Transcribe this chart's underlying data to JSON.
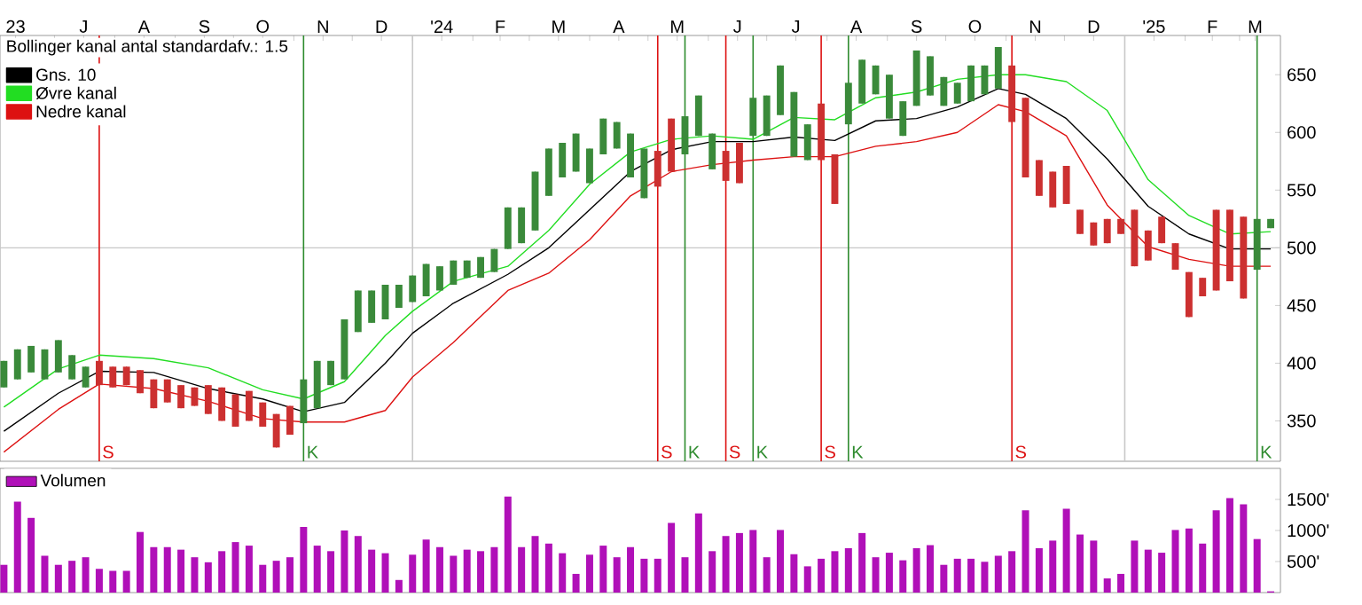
{
  "chart_data": [
    {
      "type": "candlestick",
      "x": [
        "2023-06-05",
        "2023-06-12",
        "2023-06-19",
        "2023-06-26",
        "2023-07-03",
        "2023-07-10",
        "2023-07-17",
        "2023-07-24",
        "2023-07-31",
        "2023-08-07",
        "2023-08-14",
        "2023-08-21",
        "2023-08-28",
        "2023-09-04",
        "2023-09-11",
        "2023-09-18",
        "2023-09-25",
        "2023-10-02",
        "2023-10-09",
        "2023-10-16",
        "2023-10-23",
        "2023-10-30",
        "2023-11-06",
        "2023-11-13",
        "2023-11-20",
        "2023-11-27",
        "2023-12-04",
        "2023-12-11",
        "2023-12-18",
        "2023-12-25",
        "2024-01-01",
        "2024-01-08",
        "2024-01-15",
        "2024-01-22",
        "2024-01-29",
        "2024-02-05",
        "2024-02-12",
        "2024-02-19",
        "2024-02-26",
        "2024-03-04",
        "2024-03-11",
        "2024-03-18",
        "2024-03-25",
        "2024-04-01",
        "2024-04-08",
        "2024-04-15",
        "2024-04-22",
        "2024-04-29",
        "2024-05-06",
        "2024-05-13",
        "2024-05-20",
        "2024-05-27",
        "2024-06-03",
        "2024-06-10",
        "2024-06-17",
        "2024-06-24",
        "2024-07-01",
        "2024-07-08",
        "2024-07-15",
        "2024-07-22",
        "2024-07-29",
        "2024-08-05",
        "2024-08-12",
        "2024-08-19",
        "2024-08-26",
        "2024-09-02",
        "2024-09-09",
        "2024-09-16",
        "2024-09-23",
        "2024-09-30",
        "2024-10-07",
        "2024-10-14",
        "2024-10-21",
        "2024-10-28",
        "2024-11-04",
        "2024-11-11",
        "2024-11-18",
        "2024-11-25",
        "2024-12-02",
        "2024-12-09",
        "2024-12-16",
        "2024-12-23",
        "2024-12-30",
        "2025-01-06",
        "2025-01-13",
        "2025-01-20",
        "2025-01-27",
        "2025-02-03",
        "2025-02-10",
        "2025-02-17",
        "2025-02-24",
        "2025-03-03",
        "2025-03-10",
        "2025-03-17"
      ],
      "ohlc": [
        [
          379,
          402,
          379,
          402
        ],
        [
          386,
          412,
          386,
          412
        ],
        [
          392,
          415,
          392,
          415
        ],
        [
          386,
          412,
          386,
          412
        ],
        [
          392,
          420,
          392,
          420
        ],
        [
          386,
          407,
          386,
          407
        ],
        [
          379,
          397,
          379,
          397
        ],
        [
          402,
          402,
          381,
          381
        ],
        [
          397,
          397,
          379,
          379
        ],
        [
          397,
          397,
          381,
          381
        ],
        [
          394,
          394,
          374,
          374
        ],
        [
          386,
          386,
          361,
          361
        ],
        [
          386,
          386,
          366,
          366
        ],
        [
          381,
          381,
          361,
          361
        ],
        [
          379,
          379,
          363,
          363
        ],
        [
          381,
          381,
          356,
          356
        ],
        [
          379,
          379,
          350,
          350
        ],
        [
          373,
          373,
          345,
          345
        ],
        [
          376,
          376,
          350,
          350
        ],
        [
          366,
          366,
          345,
          345
        ],
        [
          356,
          356,
          327,
          327
        ],
        [
          363,
          363,
          338,
          338
        ],
        [
          348,
          386,
          348,
          386
        ],
        [
          361,
          402,
          361,
          402
        ],
        [
          381,
          402,
          381,
          402
        ],
        [
          386,
          438,
          386,
          438
        ],
        [
          427,
          463,
          427,
          463
        ],
        [
          435,
          463,
          435,
          463
        ],
        [
          438,
          468,
          438,
          468
        ],
        [
          448,
          468,
          448,
          468
        ],
        [
          453,
          476,
          453,
          476
        ],
        [
          458,
          486,
          458,
          486
        ],
        [
          463,
          484,
          463,
          484
        ],
        [
          468,
          489,
          468,
          489
        ],
        [
          474,
          489,
          474,
          489
        ],
        [
          474,
          492,
          474,
          492
        ],
        [
          479,
          499,
          479,
          499
        ],
        [
          499,
          535,
          499,
          535
        ],
        [
          504,
          535,
          504,
          535
        ],
        [
          515,
          566,
          515,
          566
        ],
        [
          545,
          586,
          545,
          586
        ],
        [
          561,
          591,
          561,
          591
        ],
        [
          566,
          599,
          566,
          599
        ],
        [
          556,
          586,
          556,
          586
        ],
        [
          581,
          612,
          581,
          612
        ],
        [
          586,
          609,
          586,
          609
        ],
        [
          561,
          599,
          561,
          599
        ],
        [
          543,
          586,
          543,
          586
        ],
        [
          584,
          584,
          553,
          553
        ],
        [
          612,
          612,
          566,
          566
        ],
        [
          581,
          614,
          581,
          614
        ],
        [
          597,
          632,
          597,
          632
        ],
        [
          568,
          599,
          568,
          599
        ],
        [
          584,
          584,
          558,
          558
        ],
        [
          591,
          591,
          556,
          556
        ],
        [
          597,
          630,
          597,
          630
        ],
        [
          597,
          632,
          597,
          632
        ],
        [
          615,
          658,
          615,
          658
        ],
        [
          579,
          635,
          579,
          635
        ],
        [
          576,
          607,
          576,
          607
        ],
        [
          625,
          625,
          576,
          576
        ],
        [
          581,
          581,
          538,
          538
        ],
        [
          607,
          643,
          607,
          643
        ],
        [
          625,
          663,
          625,
          663
        ],
        [
          633,
          658,
          633,
          658
        ],
        [
          612,
          650,
          612,
          650
        ],
        [
          597,
          627,
          597,
          627
        ],
        [
          623,
          671,
          623,
          671
        ],
        [
          632,
          666,
          632,
          666
        ],
        [
          623,
          648,
          623,
          648
        ],
        [
          625,
          643,
          625,
          643
        ],
        [
          627,
          658,
          627,
          658
        ],
        [
          633,
          658,
          633,
          658
        ],
        [
          638,
          674,
          638,
          674
        ],
        [
          658,
          658,
          609,
          609
        ],
        [
          630,
          630,
          561,
          561
        ],
        [
          576,
          576,
          545,
          545
        ],
        [
          566,
          566,
          535,
          535
        ],
        [
          571,
          571,
          538,
          538
        ],
        [
          533,
          533,
          512,
          512
        ],
        [
          522,
          522,
          502,
          502
        ],
        [
          525,
          525,
          504,
          504
        ],
        [
          525,
          525,
          512,
          512
        ],
        [
          533,
          533,
          484,
          484
        ],
        [
          515,
          515,
          489,
          489
        ],
        [
          527,
          527,
          504,
          504
        ],
        [
          504,
          504,
          481,
          481
        ],
        [
          479,
          479,
          440,
          440
        ],
        [
          474,
          474,
          458,
          458
        ],
        [
          533,
          533,
          463,
          463
        ],
        [
          533,
          533,
          471,
          471
        ],
        [
          527,
          527,
          456,
          456
        ],
        [
          481,
          525,
          481,
          525
        ],
        [
          517,
          525,
          517,
          525
        ]
      ],
      "colors": [
        "#3a8a3a",
        "#3a8a3a",
        "#3a8a3a",
        "#3a8a3a",
        "#3a8a3a",
        "#3a8a3a",
        "#3a8a3a",
        "#cc3030",
        "#cc3030",
        "#cc3030",
        "#cc3030",
        "#cc3030",
        "#cc3030",
        "#cc3030",
        "#cc3030",
        "#cc3030",
        "#cc3030",
        "#cc3030",
        "#cc3030",
        "#cc3030",
        "#cc3030",
        "#cc3030",
        "#3a8a3a",
        "#3a8a3a",
        "#3a8a3a",
        "#3a8a3a",
        "#3a8a3a",
        "#3a8a3a",
        "#3a8a3a",
        "#3a8a3a",
        "#3a8a3a",
        "#3a8a3a",
        "#3a8a3a",
        "#3a8a3a",
        "#3a8a3a",
        "#3a8a3a",
        "#3a8a3a",
        "#3a8a3a",
        "#3a8a3a",
        "#3a8a3a",
        "#3a8a3a",
        "#3a8a3a",
        "#3a8a3a",
        "#3a8a3a",
        "#3a8a3a",
        "#3a8a3a",
        "#3a8a3a",
        "#3a8a3a",
        "#cc3030",
        "#cc3030",
        "#3a8a3a",
        "#3a8a3a",
        "#3a8a3a",
        "#cc3030",
        "#cc3030",
        "#3a8a3a",
        "#3a8a3a",
        "#3a8a3a",
        "#3a8a3a",
        "#3a8a3a",
        "#cc3030",
        "#cc3030",
        "#3a8a3a",
        "#3a8a3a",
        "#3a8a3a",
        "#3a8a3a",
        "#3a8a3a",
        "#3a8a3a",
        "#3a8a3a",
        "#3a8a3a",
        "#3a8a3a",
        "#3a8a3a",
        "#3a8a3a",
        "#3a8a3a",
        "#cc3030",
        "#cc3030",
        "#cc3030",
        "#cc3030",
        "#cc3030",
        "#cc3030",
        "#cc3030",
        "#cc3030",
        "#cc3030",
        "#cc3030",
        "#cc3030",
        "#cc3030",
        "#cc3030",
        "#cc3030",
        "#cc3030",
        "#cc3030",
        "#cc3030",
        "#cc3030",
        "#3a8a3a",
        "#3a8a3a"
      ],
      "series": [
        {
          "type": "line",
          "name": "Gns. 10",
          "color": "#000000",
          "x": [
            "2023-06-05",
            "2023-07-03",
            "2023-07-24",
            "2023-08-21",
            "2023-09-18",
            "2023-10-16",
            "2023-11-06",
            "2023-11-27",
            "2023-12-18",
            "2024-01-01",
            "2024-01-22",
            "2024-02-19",
            "2024-03-11",
            "2024-04-01",
            "2024-04-22",
            "2024-05-13",
            "2024-06-03",
            "2024-06-24",
            "2024-07-15",
            "2024-08-05",
            "2024-08-26",
            "2024-09-16",
            "2024-10-07",
            "2024-10-28",
            "2024-11-11",
            "2024-12-02",
            "2024-12-23",
            "2025-01-13",
            "2025-02-03",
            "2025-02-24",
            "2025-03-17"
          ],
          "values": [
            341,
            374,
            393,
            392,
            378,
            369,
            358,
            366,
            400,
            426,
            452,
            477,
            500,
            533,
            566,
            585,
            592,
            592,
            596,
            593,
            610,
            612,
            622,
            638,
            633,
            612,
            577,
            536,
            512,
            499,
            499
          ]
        },
        {
          "type": "line",
          "name": "Øvre kanal",
          "color": "#22dd22",
          "x": [
            "2023-06-05",
            "2023-07-03",
            "2023-07-24",
            "2023-08-21",
            "2023-09-18",
            "2023-10-16",
            "2023-11-06",
            "2023-11-27",
            "2023-12-18",
            "2024-01-01",
            "2024-01-22",
            "2024-02-19",
            "2024-03-11",
            "2024-04-01",
            "2024-04-22",
            "2024-05-13",
            "2024-06-03",
            "2024-06-24",
            "2024-07-15",
            "2024-08-05",
            "2024-08-26",
            "2024-09-16",
            "2024-10-07",
            "2024-10-28",
            "2024-11-11",
            "2024-12-02",
            "2024-12-23",
            "2025-01-13",
            "2025-02-03",
            "2025-02-24",
            "2025-03-17"
          ],
          "values": [
            362,
            395,
            407,
            404,
            396,
            377,
            369,
            384,
            424,
            445,
            471,
            484,
            515,
            555,
            583,
            594,
            597,
            594,
            613,
            611,
            630,
            635,
            646,
            650,
            650,
            644,
            619,
            559,
            528,
            512,
            514
          ]
        },
        {
          "type": "line",
          "name": "Nedre kanal",
          "color": "#dd1111",
          "x": [
            "2023-06-05",
            "2023-07-03",
            "2023-07-24",
            "2023-08-21",
            "2023-09-18",
            "2023-10-16",
            "2023-11-06",
            "2023-11-27",
            "2023-12-18",
            "2024-01-01",
            "2024-01-22",
            "2024-02-19",
            "2024-03-11",
            "2024-04-01",
            "2024-04-22",
            "2024-05-13",
            "2024-06-03",
            "2024-06-24",
            "2024-07-15",
            "2024-08-05",
            "2024-08-26",
            "2024-09-16",
            "2024-10-07",
            "2024-10-28",
            "2024-11-11",
            "2024-12-02",
            "2024-12-23",
            "2025-01-13",
            "2025-02-03",
            "2025-02-24",
            "2025-03-17"
          ],
          "values": [
            323,
            360,
            382,
            378,
            367,
            352,
            349,
            349,
            359,
            388,
            418,
            463,
            478,
            507,
            545,
            566,
            572,
            576,
            579,
            579,
            588,
            592,
            600,
            624,
            618,
            597,
            537,
            501,
            490,
            484,
            484
          ]
        }
      ],
      "annotations": [
        "Bollinger kanal antal standardafv.: 1.5"
      ],
      "legend": "top left",
      "xlim": [
        "2023-06-03",
        "2025-03-22"
      ],
      "ylim": [
        315,
        684
      ],
      "yticks": [
        350,
        400,
        450,
        500,
        550,
        600,
        650
      ],
      "xticks": [
        {
          "value": "2023-06-11",
          "label": "23"
        },
        {
          "value": "2023-07-01",
          "label": null
        },
        {
          "value": "2023-07-16",
          "label": "J"
        },
        {
          "value": "2023-08-01",
          "label": null
        },
        {
          "value": "2023-08-16",
          "label": "A"
        },
        {
          "value": "2023-09-01",
          "label": null
        },
        {
          "value": "2023-09-16",
          "label": "S"
        },
        {
          "value": "2023-10-01",
          "label": null
        },
        {
          "value": "2023-10-16",
          "label": "O"
        },
        {
          "value": "2023-11-01",
          "label": null
        },
        {
          "value": "2023-11-16",
          "label": "N"
        },
        {
          "value": "2023-12-01",
          "label": null
        },
        {
          "value": "2023-12-16",
          "label": "D"
        },
        {
          "value": "2024-01-01",
          "label": null
        },
        {
          "value": "2024-01-16",
          "label": "'24"
        },
        {
          "value": "2024-02-01",
          "label": null
        },
        {
          "value": "2024-02-15",
          "label": "F"
        },
        {
          "value": "2024-03-01",
          "label": null
        },
        {
          "value": "2024-03-16",
          "label": "M"
        },
        {
          "value": "2024-04-01",
          "label": null
        },
        {
          "value": "2024-04-16",
          "label": "A"
        },
        {
          "value": "2024-05-01",
          "label": null
        },
        {
          "value": "2024-05-16",
          "label": "M"
        },
        {
          "value": "2024-06-01",
          "label": null
        },
        {
          "value": "2024-06-16",
          "label": "J"
        },
        {
          "value": "2024-07-01",
          "label": null
        },
        {
          "value": "2024-07-16",
          "label": "J"
        },
        {
          "value": "2024-08-01",
          "label": null
        },
        {
          "value": "2024-08-16",
          "label": "A"
        },
        {
          "value": "2024-09-01",
          "label": null
        },
        {
          "value": "2024-09-16",
          "label": "S"
        },
        {
          "value": "2024-10-01",
          "label": null
        },
        {
          "value": "2024-10-16",
          "label": "O"
        },
        {
          "value": "2024-11-01",
          "label": null
        },
        {
          "value": "2024-11-16",
          "label": "N"
        },
        {
          "value": "2024-12-01",
          "label": null
        },
        {
          "value": "2024-12-16",
          "label": "D"
        },
        {
          "value": "2025-01-01",
          "label": null
        },
        {
          "value": "2025-01-16",
          "label": "'25"
        },
        {
          "value": "2025-02-01",
          "label": null
        },
        {
          "value": "2025-02-15",
          "label": "F"
        },
        {
          "value": "2025-03-01",
          "label": null
        },
        {
          "value": "2025-03-09",
          "label": "M"
        }
      ],
      "ref_lines": [
        {
          "axis": "y",
          "value": 500,
          "color": "#c8c8c8"
        },
        {
          "axis": "x",
          "value": "2024-01-01",
          "color": "#c8c8c8"
        },
        {
          "axis": "x",
          "value": "2025-01-01",
          "color": "#c8c8c8"
        },
        {
          "axis": "x",
          "value": "2023-07-24",
          "label": "S",
          "color": "#dd1111"
        },
        {
          "axis": "x",
          "value": "2023-11-06",
          "label": "K",
          "color": "#2e8b2e"
        },
        {
          "axis": "x",
          "value": "2024-05-06",
          "label": "S",
          "color": "#dd1111"
        },
        {
          "axis": "x",
          "value": "2024-05-20",
          "label": "K",
          "color": "#2e8b2e"
        },
        {
          "axis": "x",
          "value": "2024-06-10",
          "label": "S",
          "color": "#dd1111"
        },
        {
          "axis": "x",
          "value": "2024-06-24",
          "label": "K",
          "color": "#2e8b2e"
        },
        {
          "axis": "x",
          "value": "2024-07-29",
          "label": "S",
          "color": "#dd1111"
        },
        {
          "axis": "x",
          "value": "2024-08-12",
          "label": "K",
          "color": "#2e8b2e"
        },
        {
          "axis": "x",
          "value": "2024-11-04",
          "label": "S",
          "color": "#dd1111"
        },
        {
          "axis": "x",
          "value": "2025-03-10",
          "label": "K",
          "color": "#2e8b2e"
        }
      ]
    },
    {
      "type": "bar",
      "x": [
        "2023-06-05",
        "2023-06-12",
        "2023-06-19",
        "2023-06-26",
        "2023-07-03",
        "2023-07-10",
        "2023-07-17",
        "2023-07-24",
        "2023-07-31",
        "2023-08-07",
        "2023-08-14",
        "2023-08-21",
        "2023-08-28",
        "2023-09-04",
        "2023-09-11",
        "2023-09-18",
        "2023-09-25",
        "2023-10-02",
        "2023-10-09",
        "2023-10-16",
        "2023-10-23",
        "2023-10-30",
        "2023-11-06",
        "2023-11-13",
        "2023-11-20",
        "2023-11-27",
        "2023-12-04",
        "2023-12-11",
        "2023-12-18",
        "2023-12-25",
        "2024-01-01",
        "2024-01-08",
        "2024-01-15",
        "2024-01-22",
        "2024-01-29",
        "2024-02-05",
        "2024-02-12",
        "2024-02-19",
        "2024-02-26",
        "2024-03-04",
        "2024-03-11",
        "2024-03-18",
        "2024-03-25",
        "2024-04-01",
        "2024-04-08",
        "2024-04-15",
        "2024-04-22",
        "2024-04-29",
        "2024-05-06",
        "2024-05-13",
        "2024-05-20",
        "2024-05-27",
        "2024-06-03",
        "2024-06-10",
        "2024-06-17",
        "2024-06-24",
        "2024-07-01",
        "2024-07-08",
        "2024-07-15",
        "2024-07-22",
        "2024-07-29",
        "2024-08-05",
        "2024-08-12",
        "2024-08-19",
        "2024-08-26",
        "2024-09-02",
        "2024-09-09",
        "2024-09-16",
        "2024-09-23",
        "2024-09-30",
        "2024-10-07",
        "2024-10-14",
        "2024-10-21",
        "2024-10-28",
        "2024-11-04",
        "2024-11-11",
        "2024-11-18",
        "2024-11-25",
        "2024-12-02",
        "2024-12-09",
        "2024-12-16",
        "2024-12-23",
        "2024-12-30",
        "2025-01-06",
        "2025-01-13",
        "2025-01-20",
        "2025-01-27",
        "2025-02-03",
        "2025-02-10",
        "2025-02-17",
        "2025-02-24",
        "2025-03-03",
        "2025-03-10",
        "2025-03-17"
      ],
      "series": [
        {
          "name": "Volumen",
          "color": "#b010b8",
          "values": [
            447,
            1463,
            1203,
            593,
            447,
            512,
            569,
            382,
            350,
            350,
            976,
            732,
            732,
            691,
            569,
            488,
            667,
            813,
            756,
            447,
            512,
            569,
            1057,
            756,
            667,
            1000,
            911,
            691,
            634,
            203,
            610,
            854,
            732,
            593,
            691,
            667,
            732,
            1545,
            732,
            911,
            789,
            634,
            301,
            610,
            756,
            569,
            732,
            545,
            545,
            1122,
            569,
            1276,
            667,
            911,
            959,
            1008,
            569,
            1008,
            618,
            423,
            545,
            667,
            715,
            959,
            569,
            642,
            520,
            715,
            764,
            447,
            545,
            545,
            496,
            593,
            667,
            1325,
            715,
            837,
            1350,
            935,
            837,
            228,
            301,
            837,
            691,
            642,
            1008,
            1032,
            789,
            1325,
            1520,
            1423,
            862,
            20
          ]
        }
      ],
      "legend": "top left",
      "tick_labels": "y",
      "xlim": [
        "2023-06-03",
        "2025-03-22"
      ],
      "ylim": [
        0,
        2000
      ],
      "yticks": [
        {
          "value": 500,
          "label": "500'"
        },
        {
          "value": 1000,
          "label": "1000'"
        },
        {
          "value": 1500,
          "label": "1500'"
        }
      ]
    }
  ]
}
